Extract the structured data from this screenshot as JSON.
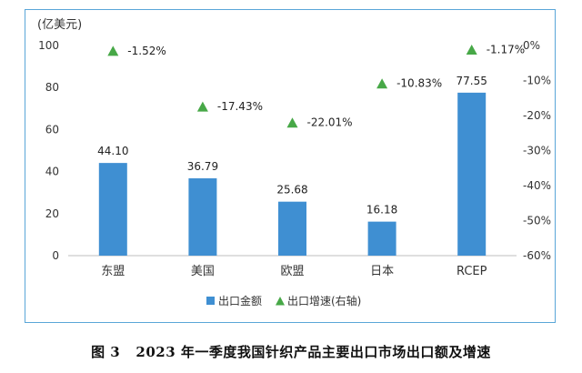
{
  "chart_data": {
    "type": "bar",
    "categories": [
      "东盟",
      "美国",
      "欧盟",
      "日本",
      "RCEP"
    ],
    "series": [
      {
        "name": "出口金额",
        "values": [
          44.1,
          36.79,
          25.68,
          16.18,
          77.55
        ],
        "color": "#3f8fd2",
        "axis": "left"
      },
      {
        "name": "出口增速(右轴)",
        "values": [
          -1.52,
          -17.43,
          -22.01,
          -10.83,
          -1.17
        ],
        "color": "#47a847",
        "marker": "triangle",
        "axis": "right"
      }
    ],
    "bar_labels": [
      "44.10",
      "36.79",
      "25.68",
      "16.18",
      "77.55"
    ],
    "growth_labels": [
      "-1.52%",
      "-17.43%",
      "-22.01%",
      "-10.83%",
      "-1.17%"
    ],
    "y_unit_label": "(亿美元)",
    "ylim": [
      0,
      100
    ],
    "y_ticks": [
      "0",
      "20",
      "40",
      "60",
      "80",
      "100"
    ],
    "y2lim": [
      -60,
      0
    ],
    "y2_ticks": [
      "0%",
      "-10%",
      "-20%",
      "-30%",
      "-40%",
      "-50%",
      "-60%"
    ],
    "legend_position": "bottom",
    "grid": false
  },
  "caption": {
    "figure_number": "图 3",
    "text": "2023 年一季度我国针织产品主要出口市场出口额及增速"
  }
}
